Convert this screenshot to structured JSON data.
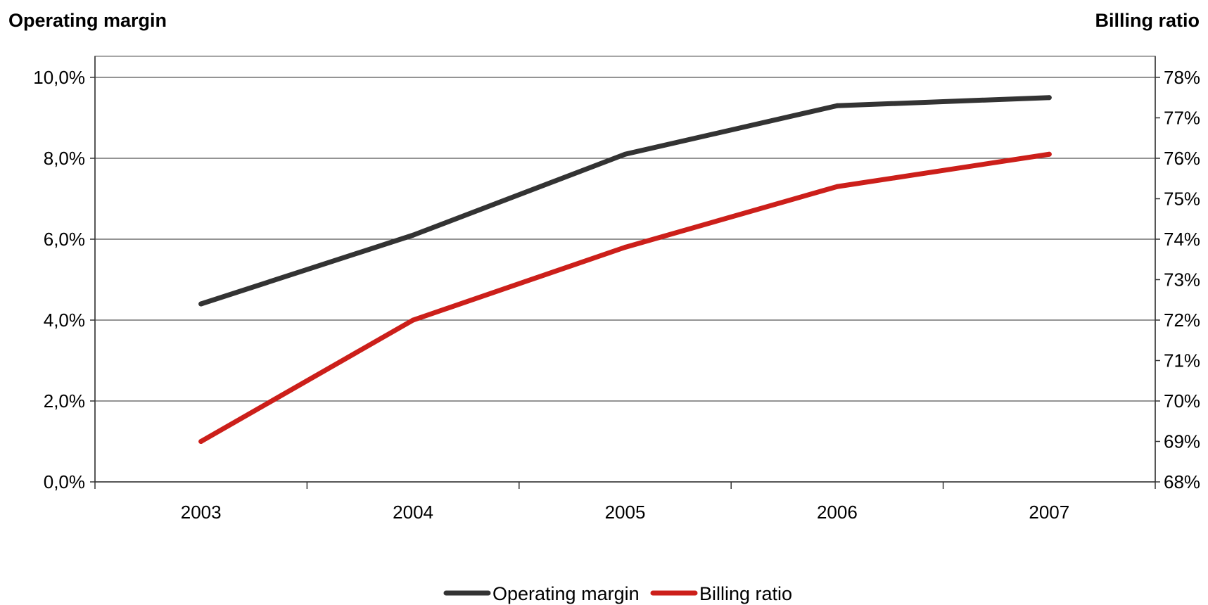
{
  "chart_data": {
    "type": "line",
    "categories": [
      "2003",
      "2004",
      "2005",
      "2006",
      "2007"
    ],
    "y_left": {
      "title": "Operating margin",
      "range": [
        0,
        10
      ],
      "ticks": [
        0,
        2,
        4,
        6,
        8,
        10
      ],
      "tick_labels": [
        "0,0%",
        "2,0%",
        "4,0%",
        "6,0%",
        "8,0%",
        "10,0%"
      ]
    },
    "y_right": {
      "title": "Billing ratio",
      "range": [
        68,
        78
      ],
      "ticks": [
        68,
        69,
        70,
        71,
        72,
        73,
        74,
        75,
        76,
        77,
        78
      ],
      "tick_labels": [
        "68%",
        "69%",
        "70%",
        "71%",
        "72%",
        "73%",
        "74%",
        "75%",
        "76%",
        "77%",
        "78%"
      ]
    },
    "series": [
      {
        "name": "Operating margin",
        "axis": "left",
        "color": "#333333",
        "values": [
          4.4,
          6.1,
          8.1,
          9.3,
          9.5
        ]
      },
      {
        "name": "Billing ratio",
        "axis": "right",
        "color": "#cc1f1a",
        "values": [
          69.0,
          72.0,
          73.8,
          75.3,
          76.1
        ]
      }
    ],
    "grid": true,
    "legend": "bottom-center"
  }
}
